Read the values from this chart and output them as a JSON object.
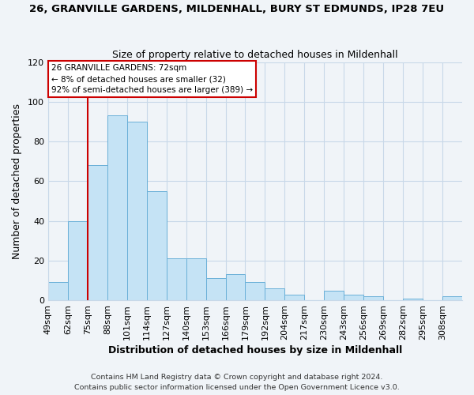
{
  "title": "26, GRANVILLE GARDENS, MILDENHALL, BURY ST EDMUNDS, IP28 7EU",
  "subtitle": "Size of property relative to detached houses in Mildenhall",
  "xlabel": "Distribution of detached houses by size in Mildenhall",
  "ylabel": "Number of detached properties",
  "bin_labels": [
    "49sqm",
    "62sqm",
    "75sqm",
    "88sqm",
    "101sqm",
    "114sqm",
    "127sqm",
    "140sqm",
    "153sqm",
    "166sqm",
    "179sqm",
    "192sqm",
    "204sqm",
    "217sqm",
    "230sqm",
    "243sqm",
    "256sqm",
    "269sqm",
    "282sqm",
    "295sqm",
    "308sqm"
  ],
  "bar_heights": [
    9,
    40,
    68,
    93,
    90,
    55,
    21,
    21,
    11,
    13,
    9,
    6,
    3,
    0,
    5,
    3,
    2,
    0,
    1,
    0,
    2
  ],
  "bar_color": "#c5e3f5",
  "bar_edge_color": "#6ab0d8",
  "marker_line_color": "#cc0000",
  "marker_bin_index": 2,
  "ylim": [
    0,
    120
  ],
  "yticks": [
    0,
    20,
    40,
    60,
    80,
    100,
    120
  ],
  "annotation_title": "26 GRANVILLE GARDENS: 72sqm",
  "annotation_line1": "← 8% of detached houses are smaller (32)",
  "annotation_line2": "92% of semi-detached houses are larger (389) →",
  "annotation_box_color": "#ffffff",
  "annotation_box_edge": "#cc0000",
  "footer_line1": "Contains HM Land Registry data © Crown copyright and database right 2024.",
  "footer_line2": "Contains public sector information licensed under the Open Government Licence v3.0.",
  "background_color": "#f0f4f8",
  "grid_color": "#c8d8e8",
  "title_fontsize": 9.5,
  "subtitle_fontsize": 9,
  "axis_label_fontsize": 9,
  "tick_fontsize": 8,
  "footer_fontsize": 6.8
}
